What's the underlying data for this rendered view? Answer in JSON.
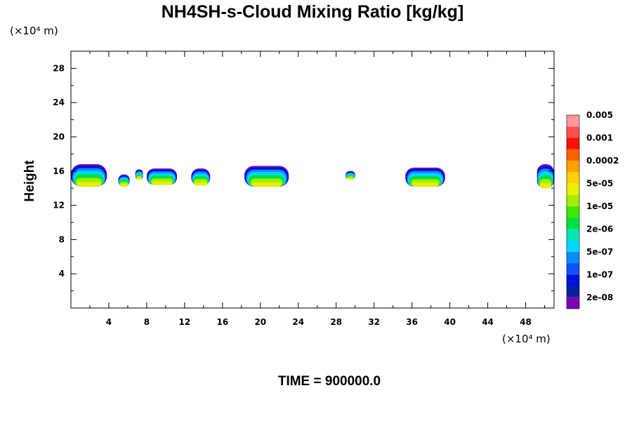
{
  "chart_data": {
    "type": "heatmap",
    "title": "NH4SH-s-Cloud Mixing Ratio [kg/kg]",
    "y_unit": "(×10⁴ m)",
    "x_unit": "(×10⁴ m)",
    "ylabel": "Height",
    "xlabel": "",
    "xlim": [
      0,
      51
    ],
    "ylim": [
      0,
      30
    ],
    "x_ticks": [
      "4",
      "8",
      "12",
      "16",
      "20",
      "24",
      "28",
      "32",
      "36",
      "40",
      "44",
      "48"
    ],
    "y_ticks": [
      "4",
      "8",
      "12",
      "16",
      "20",
      "24",
      "28"
    ],
    "footer": "TIME = 900000.0",
    "colorbar": {
      "colors": [
        "#7f00b2",
        "#0a1ea0",
        "#0010dc",
        "#1050ff",
        "#0a8cff",
        "#00d8ff",
        "#00e8b0",
        "#00e040",
        "#40e800",
        "#a0f000",
        "#e8f000",
        "#ffd000",
        "#ffa000",
        "#ff6000",
        "#ff1000",
        "#ff5050",
        "#ff9898"
      ],
      "labels": [
        "2e-08",
        "1e-07",
        "5e-07",
        "2e-06",
        "1e-05",
        "5e-05",
        "0.0002",
        "0.001",
        "0.005"
      ]
    },
    "clouds": [
      {
        "x0": 0.0,
        "x1": 3.8,
        "y0": 14.2,
        "y1": 16.8
      },
      {
        "x0": 5.0,
        "x1": 6.2,
        "y0": 14.2,
        "y1": 15.6
      },
      {
        "x0": 6.8,
        "x1": 7.6,
        "y0": 15.0,
        "y1": 16.2
      },
      {
        "x0": 8.0,
        "x1": 11.2,
        "y0": 14.4,
        "y1": 16.3
      },
      {
        "x0": 12.7,
        "x1": 14.7,
        "y0": 14.3,
        "y1": 16.3
      },
      {
        "x0": 18.3,
        "x1": 23.0,
        "y0": 14.2,
        "y1": 16.6
      },
      {
        "x0": 29.0,
        "x1": 30.0,
        "y0": 15.0,
        "y1": 16.0
      },
      {
        "x0": 35.3,
        "x1": 39.5,
        "y0": 14.2,
        "y1": 16.4
      },
      {
        "x0": 49.2,
        "x1": 51.0,
        "y0": 14.0,
        "y1": 16.8
      }
    ]
  }
}
